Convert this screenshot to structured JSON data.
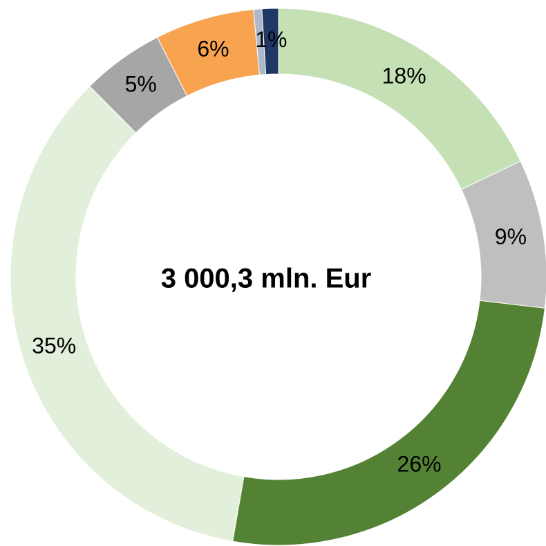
{
  "chart_data": {
    "type": "donut",
    "center_text": "3 000,3 mln. Eur",
    "values": [
      18,
      9,
      26,
      35,
      5,
      6,
      0.5,
      1
    ],
    "value_labels": [
      "18%",
      "9%",
      "26%",
      "35%",
      "5%",
      "6%",
      null,
      "1%"
    ],
    "colors": [
      "#c5e0b4",
      "#bfbfbf",
      "#548235",
      "#e2efda",
      "#a6a6a6",
      "#f8a34f",
      "#adb9ca",
      "#1f3864"
    ]
  }
}
